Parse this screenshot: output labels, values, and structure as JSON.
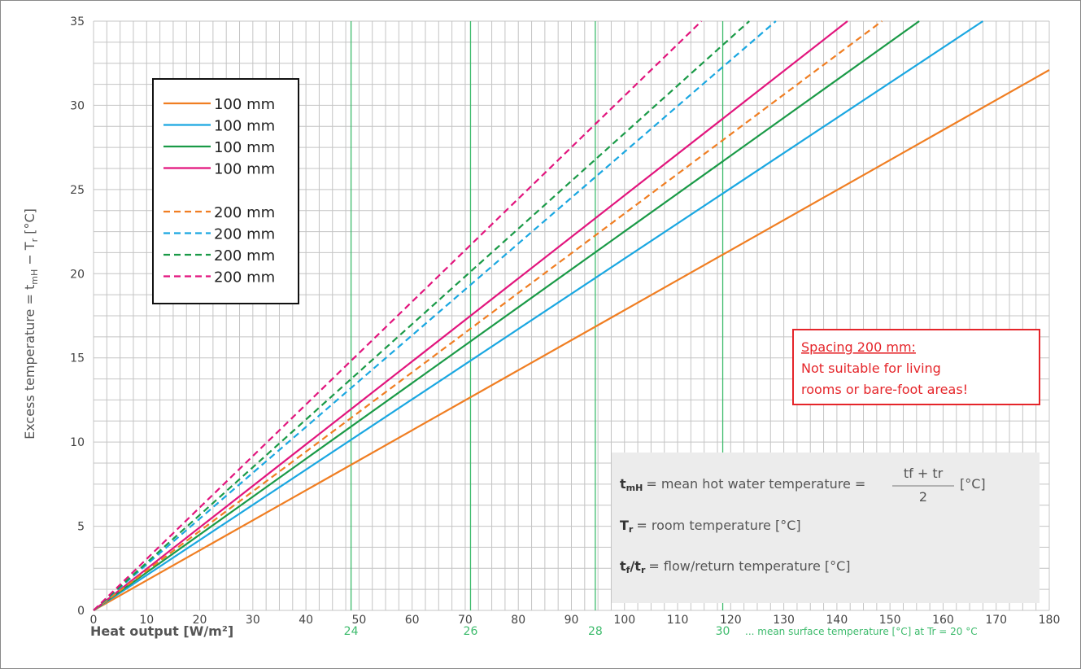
{
  "chart_data": {
    "type": "line",
    "xlabel": "Heat output [W/m²]",
    "ylabel": "Excess temperature = tmH − Tr [°C]",
    "xlim": [
      0,
      180
    ],
    "ylim": [
      0,
      35
    ],
    "x_ticks": [
      0,
      10,
      20,
      30,
      40,
      50,
      60,
      70,
      80,
      90,
      100,
      110,
      120,
      130,
      140,
      150,
      160,
      170,
      180
    ],
    "y_ticks": [
      0,
      5,
      10,
      15,
      20,
      25,
      30,
      35
    ],
    "grid": true,
    "legend_position": "top-left",
    "series": [
      {
        "name": "100 mm",
        "color": "#f07e22",
        "dash": false,
        "x": [
          0,
          180
        ],
        "y": [
          0,
          32.1
        ]
      },
      {
        "name": "100 mm",
        "color": "#1aa7e1",
        "dash": false,
        "x": [
          0,
          167.5
        ],
        "y": [
          0,
          35
        ]
      },
      {
        "name": "100 mm",
        "color": "#1a9a47",
        "dash": false,
        "x": [
          0,
          155.5
        ],
        "y": [
          0,
          35
        ]
      },
      {
        "name": "100 mm",
        "color": "#e2157d",
        "dash": false,
        "x": [
          0,
          142
        ],
        "y": [
          0,
          35
        ]
      },
      {
        "name": "200 mm",
        "color": "#f07e22",
        "dash": true,
        "x": [
          0,
          148.5
        ],
        "y": [
          0,
          35
        ]
      },
      {
        "name": "200 mm",
        "color": "#1aa7e1",
        "dash": true,
        "x": [
          0,
          128.5
        ],
        "y": [
          0,
          35
        ]
      },
      {
        "name": "200 mm",
        "color": "#1a9a47",
        "dash": true,
        "x": [
          0,
          123.5
        ],
        "y": [
          0,
          35
        ]
      },
      {
        "name": "200 mm",
        "color": "#e2157d",
        "dash": true,
        "x": [
          0,
          114.5
        ],
        "y": [
          0,
          35
        ]
      }
    ],
    "surface_temperature_lines": {
      "color": "#3dbb6c",
      "lines": [
        {
          "label": "24",
          "x": 48.5
        },
        {
          "label": "26",
          "x": 71
        },
        {
          "label": "28",
          "x": 94.5
        },
        {
          "label": "30",
          "x": 118.5
        }
      ],
      "note": "... mean surface temperature [°C] at Tr = 20 °C"
    },
    "warning": {
      "title": "Spacing 200 mm:",
      "lines": [
        "Not suitable for living",
        "rooms or bare-foot areas!"
      ],
      "color": "#e5252a"
    },
    "info_box": {
      "tmh_line": "= mean hot water temperature =",
      "tmh_fraction_top": "tf + tr",
      "tmh_fraction_bottom": "2",
      "tmh_unit": "[°C]",
      "tr_line": "= room temperature [°C]",
      "tftr_line": "= flow/return temperature [°C]"
    }
  }
}
